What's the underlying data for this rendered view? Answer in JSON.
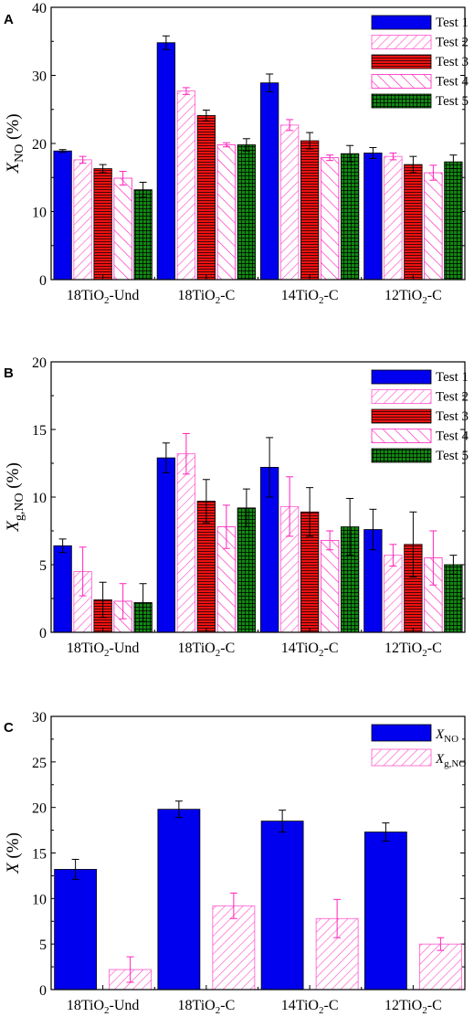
{
  "figure": {
    "colors": {
      "test1": "#0000ee",
      "test2": "#ff55cc",
      "test3": "#ee1111",
      "test4": "#ff22bb",
      "test5": "#118811",
      "errorbar_dark": "#000000",
      "errorbar_pink": "#ff22bb"
    }
  },
  "chart_data": [
    {
      "type": "bar",
      "panel_letter": "A",
      "ylabel": {
        "main": "X",
        "sub": "NO",
        "unit": " (%)"
      },
      "ylim": [
        0,
        40
      ],
      "yticks": [
        "0",
        "10",
        "20",
        "30",
        "40"
      ],
      "categories": [
        {
          "pre": "18TiO",
          "sub": "2",
          "post": "-Und"
        },
        {
          "pre": "18TiO",
          "sub": "2",
          "post": "-C"
        },
        {
          "pre": "14TiO",
          "sub": "2",
          "post": "-C"
        },
        {
          "pre": "12TiO",
          "sub": "2",
          "post": "-C"
        }
      ],
      "legend_position": "top-right",
      "series": [
        {
          "name": "Test 1",
          "pattern": "solid-blue",
          "values": [
            18.9,
            34.8,
            28.9,
            18.6
          ],
          "errors": [
            0.2,
            1.0,
            1.3,
            0.8
          ]
        },
        {
          "name": "Test 2",
          "pattern": "diag-pink",
          "values": [
            17.6,
            27.7,
            22.7,
            18.1
          ],
          "errors": [
            0.5,
            0.5,
            0.8,
            0.5
          ]
        },
        {
          "name": "Test 3",
          "pattern": "hlines-red",
          "values": [
            16.3,
            24.1,
            20.4,
            16.9
          ],
          "errors": [
            0.6,
            0.8,
            1.2,
            1.2
          ]
        },
        {
          "name": "Test 4",
          "pattern": "wide-diag-pink",
          "values": [
            14.9,
            19.8,
            17.9,
            15.7
          ],
          "errors": [
            1.0,
            0.3,
            0.4,
            1.1
          ]
        },
        {
          "name": "Test 5",
          "pattern": "grid-green",
          "values": [
            13.2,
            19.8,
            18.5,
            17.3
          ],
          "errors": [
            1.1,
            0.9,
            1.2,
            1.0
          ]
        }
      ]
    },
    {
      "type": "bar",
      "panel_letter": "B",
      "ylabel": {
        "main": "X",
        "sub": "g,NO",
        "unit": " (%)"
      },
      "ylim": [
        0,
        20
      ],
      "yticks": [
        "0",
        "5",
        "10",
        "15",
        "20"
      ],
      "categories": [
        {
          "pre": "18TiO",
          "sub": "2",
          "post": "-Und"
        },
        {
          "pre": "18TiO",
          "sub": "2",
          "post": "-C"
        },
        {
          "pre": "14TiO",
          "sub": "2",
          "post": "-C"
        },
        {
          "pre": "12TiO",
          "sub": "2",
          "post": "-C"
        }
      ],
      "legend_position": "top-right",
      "series": [
        {
          "name": "Test 1",
          "pattern": "solid-blue",
          "values": [
            6.4,
            12.9,
            12.2,
            7.6
          ],
          "errors": [
            0.5,
            1.1,
            2.2,
            1.5
          ]
        },
        {
          "name": "Test 2",
          "pattern": "diag-pink",
          "values": [
            4.5,
            13.2,
            9.3,
            5.7
          ],
          "errors": [
            1.8,
            1.5,
            2.2,
            0.8
          ]
        },
        {
          "name": "Test 3",
          "pattern": "hlines-red",
          "values": [
            2.4,
            9.7,
            8.9,
            6.5
          ],
          "errors": [
            1.3,
            1.6,
            1.8,
            2.4
          ]
        },
        {
          "name": "Test 4",
          "pattern": "wide-diag-pink",
          "values": [
            2.3,
            7.8,
            6.8,
            5.5
          ],
          "errors": [
            1.3,
            1.6,
            0.7,
            2.0
          ]
        },
        {
          "name": "Test 5",
          "pattern": "grid-green",
          "values": [
            2.2,
            9.2,
            7.8,
            5.0
          ],
          "errors": [
            1.4,
            1.4,
            2.1,
            0.7
          ]
        }
      ]
    },
    {
      "type": "bar",
      "panel_letter": "C",
      "ylabel": {
        "main": "X",
        "sub": "",
        "unit": " (%)"
      },
      "ylim": [
        0,
        30
      ],
      "yticks": [
        "0",
        "5",
        "10",
        "15",
        "20",
        "25",
        "30"
      ],
      "categories": [
        {
          "pre": "18TiO",
          "sub": "2",
          "post": "-Und"
        },
        {
          "pre": "18TiO",
          "sub": "2",
          "post": "-C"
        },
        {
          "pre": "14TiO",
          "sub": "2",
          "post": "-C"
        },
        {
          "pre": "12TiO",
          "sub": "2",
          "post": "-C"
        }
      ],
      "legend_position": "top-right",
      "series": [
        {
          "name": "X_NO",
          "legend": {
            "main": "X",
            "sub": "NO"
          },
          "pattern": "solid-blue",
          "values": [
            13.2,
            19.8,
            18.5,
            17.3
          ],
          "errors": [
            1.1,
            0.9,
            1.2,
            1.0
          ]
        },
        {
          "name": "X_g,NO",
          "legend": {
            "main": "X",
            "sub": "g,NO"
          },
          "pattern": "diag-pink",
          "values": [
            2.2,
            9.2,
            7.8,
            5.0
          ],
          "errors": [
            1.4,
            1.4,
            2.1,
            0.7
          ]
        }
      ]
    }
  ]
}
